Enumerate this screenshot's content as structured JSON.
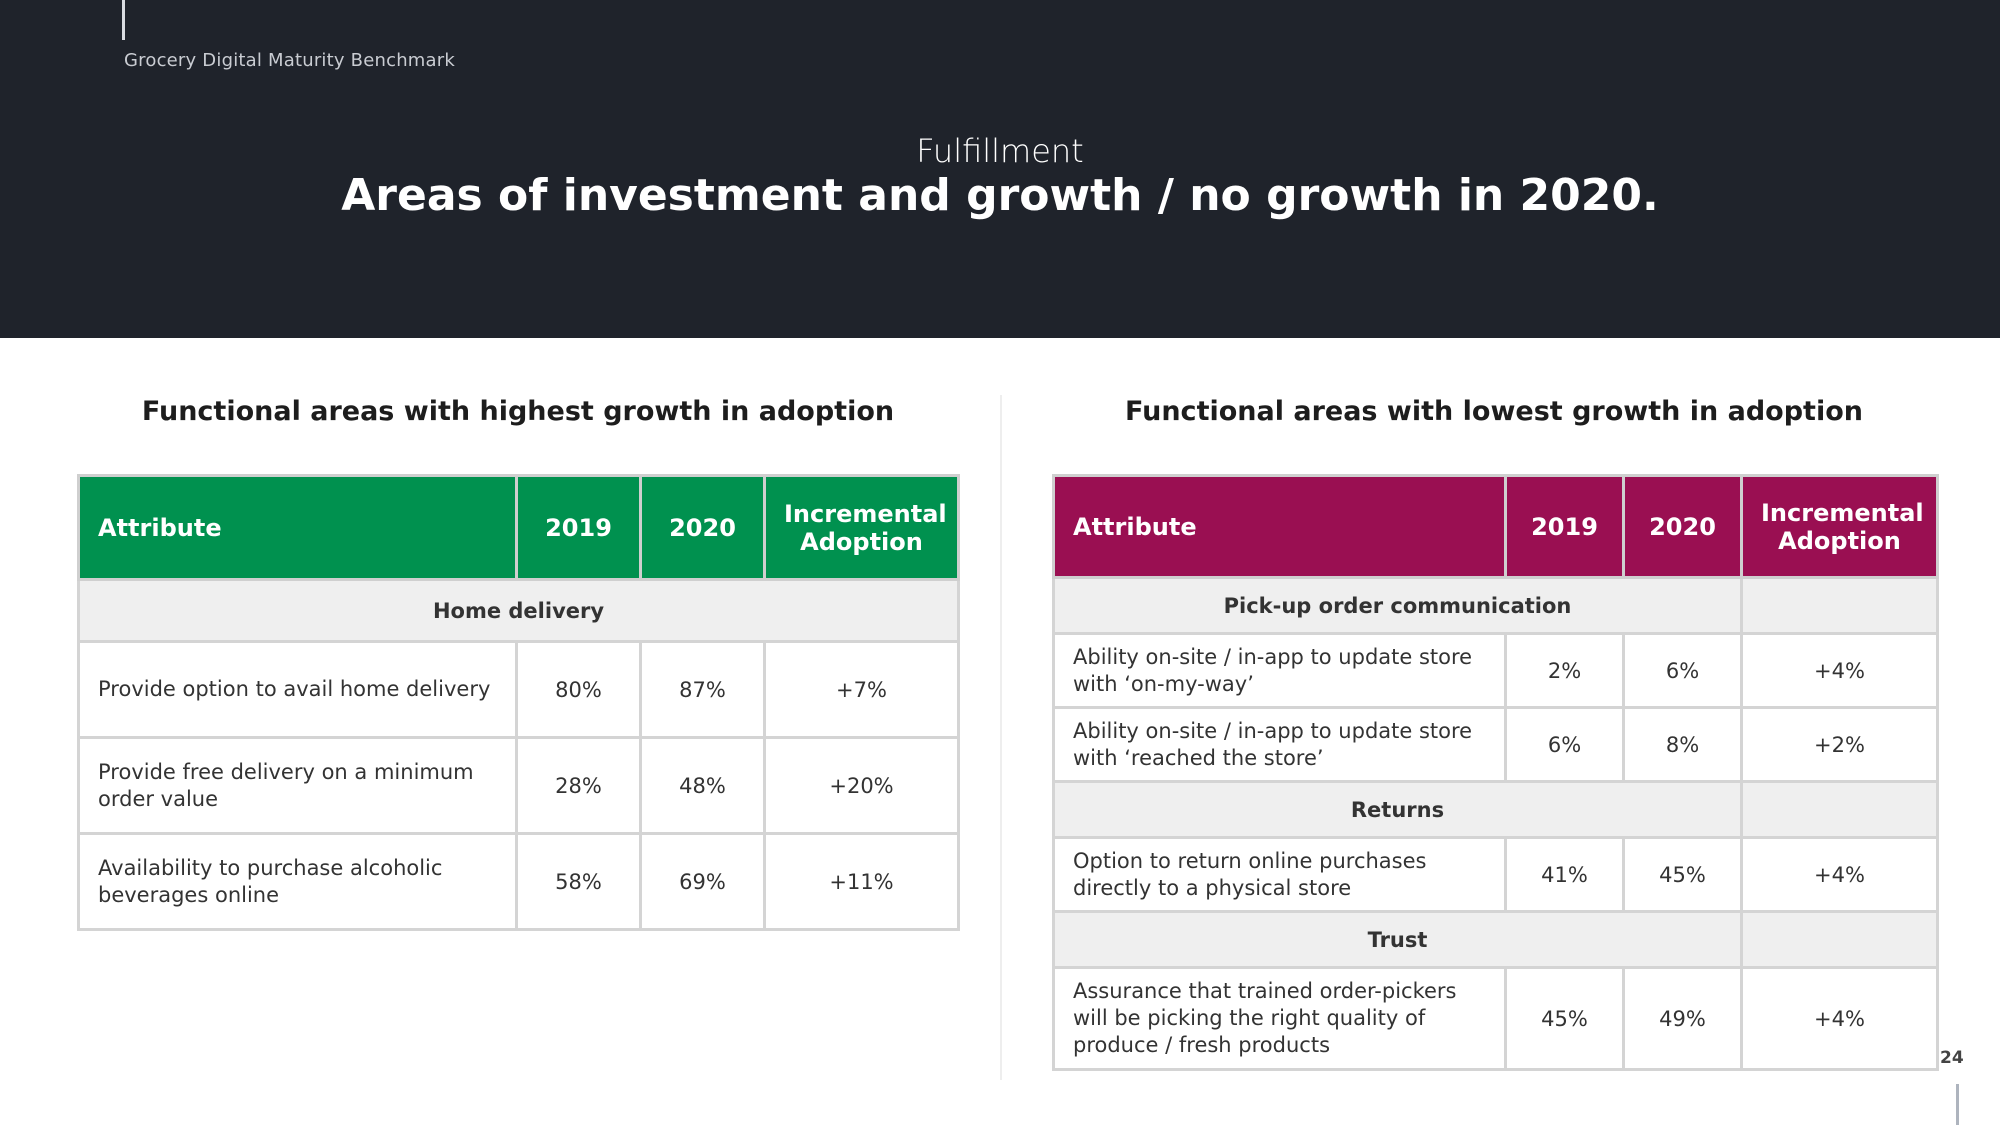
{
  "header": {
    "brand": "Grocery Digital Maturity Benchmark",
    "eyebrow": "Fulfillment",
    "title": "Areas of investment and growth / no growth in 2020."
  },
  "left": {
    "title": "Functional areas with highest growth in adoption",
    "headers": {
      "attribute": "Attribute",
      "y2019": "2019",
      "y2020": "2020",
      "incremental_line1": "Incremental",
      "incremental_line2": "Adoption"
    },
    "group": "Home delivery",
    "rows": [
      {
        "attribute": "Provide option to avail home delivery",
        "y2019": "80%",
        "y2020": "87%",
        "incremental": "+7%"
      },
      {
        "attribute": "Provide free delivery on a minimum order value",
        "y2019": "28%",
        "y2020": "48%",
        "incremental": "+20%"
      },
      {
        "attribute": "Availability to purchase alcoholic beverages online",
        "y2019": "58%",
        "y2020": "69%",
        "incremental": "+11%"
      }
    ]
  },
  "right": {
    "title": "Functional areas with lowest growth in adoption",
    "headers": {
      "attribute": "Attribute",
      "y2019": "2019",
      "y2020": "2020",
      "incremental_line1": "Incremental",
      "incremental_line2": "Adoption"
    },
    "groups": [
      {
        "label": "Pick-up order communication",
        "rows": [
          {
            "attribute": "Ability on-site / in-app to update store with ‘on-my-way’",
            "y2019": "2%",
            "y2020": "6%",
            "incremental": "+4%"
          },
          {
            "attribute": "Ability on-site / in-app to update store with ‘reached the store’",
            "y2019": "6%",
            "y2020": "8%",
            "incremental": "+2%"
          }
        ]
      },
      {
        "label": "Returns",
        "rows": [
          {
            "attribute": "Option to return online purchases directly to a physical store",
            "y2019": "41%",
            "y2020": "45%",
            "incremental": "+4%"
          }
        ]
      },
      {
        "label": "Trust",
        "rows": [
          {
            "attribute": "Assurance that trained order-pickers will be picking the right quality of produce / fresh products",
            "y2019": "45%",
            "y2020": "49%",
            "incremental": "+4%"
          }
        ]
      }
    ]
  },
  "footer": {
    "page_number": "24"
  },
  "colors": {
    "header_bg": "#1f232b",
    "left_header": "#00914f",
    "right_header": "#9a0f52",
    "group_bg": "#efefef"
  }
}
